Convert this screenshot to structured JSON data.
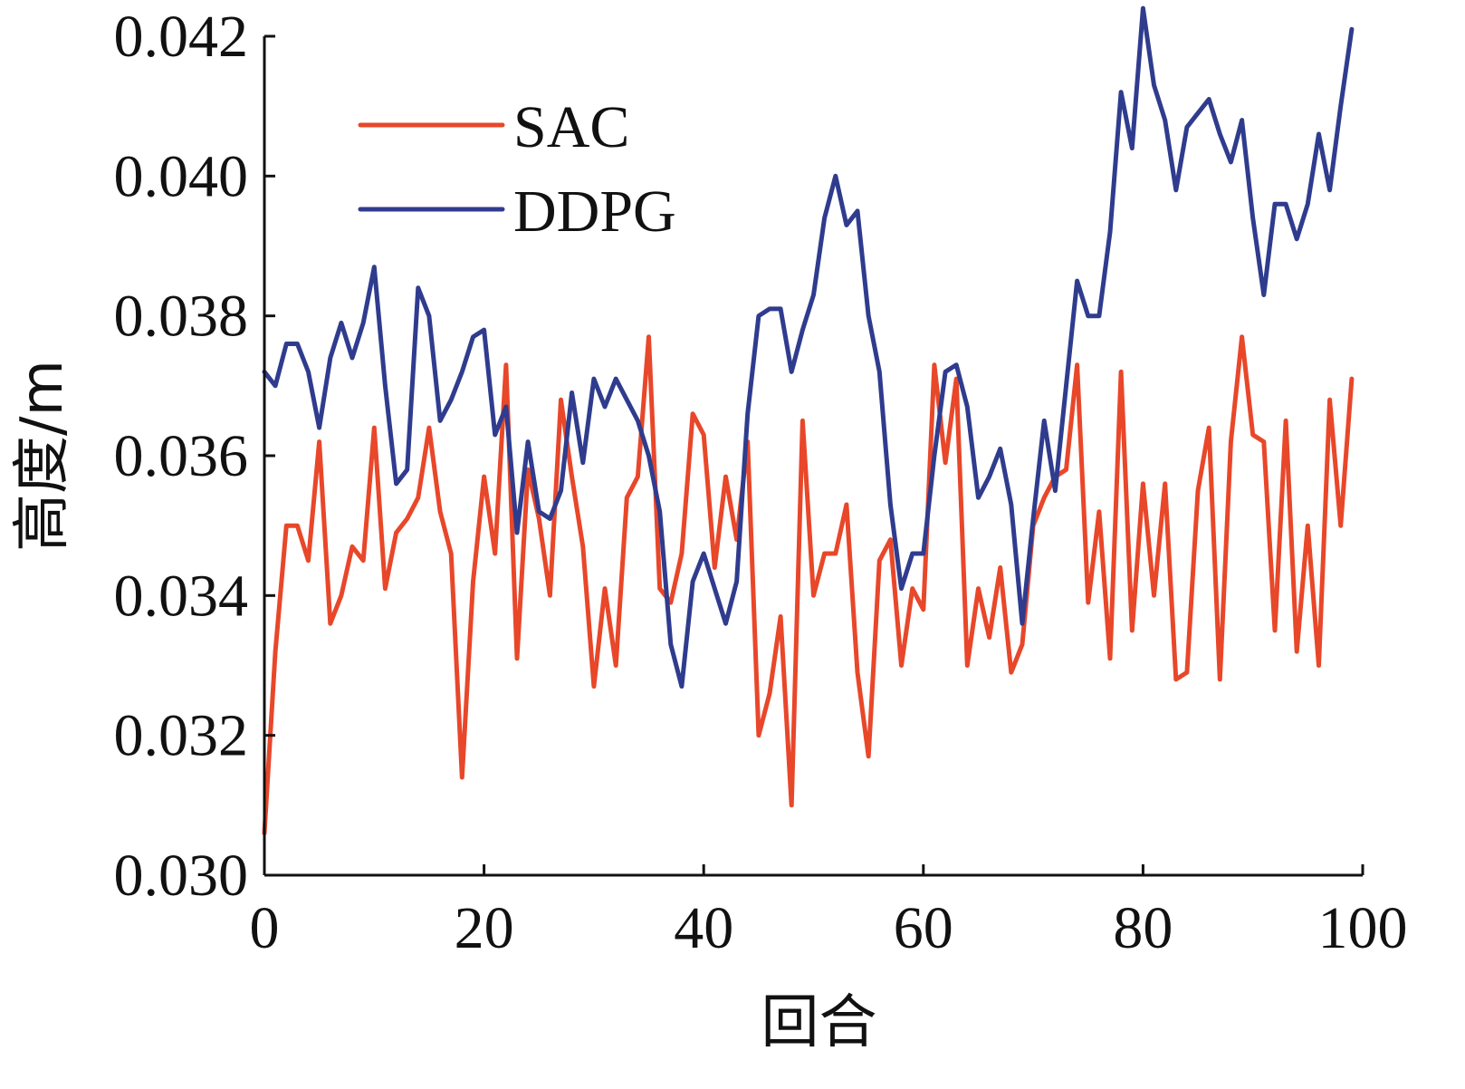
{
  "chart_data": {
    "type": "line",
    "xlabel": "回合",
    "ylabel": "高度/m",
    "xlim": [
      0,
      100
    ],
    "ylim": [
      0.03,
      0.042
    ],
    "xticks": [
      "0",
      "20",
      "40",
      "60",
      "80",
      "100"
    ],
    "yticks": [
      "0.030",
      "0.032",
      "0.034",
      "0.036",
      "0.038",
      "0.040",
      "0.042"
    ],
    "grid": false,
    "legend": {
      "placement": "top-left",
      "entries": [
        "SAC",
        "DDPG"
      ]
    },
    "x": [
      0,
      1,
      2,
      3,
      4,
      5,
      6,
      7,
      8,
      9,
      10,
      11,
      12,
      13,
      14,
      15,
      16,
      17,
      18,
      19,
      20,
      21,
      22,
      23,
      24,
      25,
      26,
      27,
      28,
      29,
      30,
      31,
      32,
      33,
      34,
      35,
      36,
      37,
      38,
      39,
      40,
      41,
      42,
      43,
      44,
      45,
      46,
      47,
      48,
      49,
      50,
      51,
      52,
      53,
      54,
      55,
      56,
      57,
      58,
      59,
      60,
      61,
      62,
      63,
      64,
      65,
      66,
      67,
      68,
      69,
      70,
      71,
      72,
      73,
      74,
      75,
      76,
      77,
      78,
      79,
      80,
      81,
      82,
      83,
      84,
      85,
      86,
      87,
      88,
      89,
      90,
      91,
      92,
      93,
      94,
      95,
      96,
      97,
      98,
      99
    ],
    "series": [
      {
        "name": "SAC",
        "color": "#e8472a",
        "values": [
          0.0306,
          0.0332,
          0.035,
          0.035,
          0.0345,
          0.0362,
          0.0336,
          0.034,
          0.0347,
          0.0345,
          0.0364,
          0.0341,
          0.0349,
          0.0351,
          0.0354,
          0.0364,
          0.0352,
          0.0346,
          0.0314,
          0.0342,
          0.0357,
          0.0346,
          0.0373,
          0.0331,
          0.0358,
          0.0351,
          0.034,
          0.0368,
          0.0357,
          0.0347,
          0.0327,
          0.0341,
          0.033,
          0.0354,
          0.0357,
          0.0377,
          0.0341,
          0.0339,
          0.0346,
          0.0366,
          0.0363,
          0.0344,
          0.0357,
          0.0348,
          0.0362,
          0.032,
          0.0326,
          0.0337,
          0.031,
          0.0365,
          0.034,
          0.0346,
          0.0346,
          0.0353,
          0.0329,
          0.0317,
          0.0345,
          0.0348,
          0.033,
          0.0341,
          0.0338,
          0.0373,
          0.0359,
          0.0371,
          0.033,
          0.0341,
          0.0334,
          0.0344,
          0.0329,
          0.0333,
          0.035,
          0.0354,
          0.0357,
          0.0358,
          0.0373,
          0.0339,
          0.0352,
          0.0331,
          0.0372,
          0.0335,
          0.0356,
          0.034,
          0.0356,
          0.0328,
          0.0329,
          0.0355,
          0.0364,
          0.0328,
          0.0362,
          0.0377,
          0.0363,
          0.0362,
          0.0335,
          0.0365,
          0.0332,
          0.035,
          0.033,
          0.0368,
          0.035,
          0.0371
        ]
      },
      {
        "name": "DDPG",
        "color": "#2f3c8e",
        "values": [
          0.0372,
          0.037,
          0.0376,
          0.0376,
          0.0372,
          0.0364,
          0.0374,
          0.0379,
          0.0374,
          0.0379,
          0.0387,
          0.037,
          0.0356,
          0.0358,
          0.0384,
          0.038,
          0.0365,
          0.0368,
          0.0372,
          0.0377,
          0.0378,
          0.0363,
          0.0367,
          0.0349,
          0.0362,
          0.0352,
          0.0351,
          0.0355,
          0.0369,
          0.0359,
          0.0371,
          0.0367,
          0.0371,
          0.0368,
          0.0365,
          0.036,
          0.0352,
          0.0333,
          0.0327,
          0.0342,
          0.0346,
          0.0341,
          0.0336,
          0.0342,
          0.0366,
          0.038,
          0.0381,
          0.0381,
          0.0372,
          0.0378,
          0.0383,
          0.0394,
          0.04,
          0.0393,
          0.0395,
          0.038,
          0.0372,
          0.0353,
          0.0341,
          0.0346,
          0.0346,
          0.036,
          0.0372,
          0.0373,
          0.0367,
          0.0354,
          0.0357,
          0.0361,
          0.0353,
          0.0336,
          0.0351,
          0.0365,
          0.0355,
          0.037,
          0.0385,
          0.038,
          0.038,
          0.0392,
          0.0412,
          0.0404,
          0.0424,
          0.0413,
          0.0408,
          0.0398,
          0.0407,
          0.0409,
          0.0411,
          0.0406,
          0.0402,
          0.0408,
          0.0394,
          0.0383,
          0.0396,
          0.0396,
          0.0391,
          0.0396,
          0.0406,
          0.0398,
          0.041,
          0.0421
        ]
      }
    ]
  }
}
